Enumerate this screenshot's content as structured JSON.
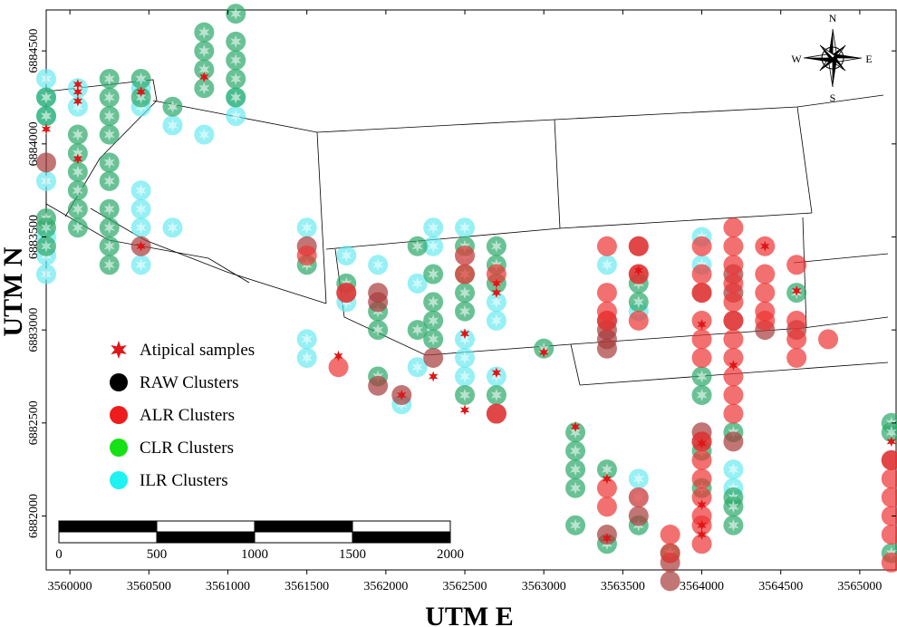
{
  "chart_data": {
    "type": "scatter",
    "title": "",
    "xlabel": "UTM E",
    "ylabel": "UTM N",
    "xlim": [
      3559850,
      3565230
    ],
    "ylim": [
      6881710,
      6884720
    ],
    "x_ticks": [
      3560000,
      3560500,
      3561000,
      3561500,
      3562000,
      3562500,
      3563000,
      3563500,
      3564000,
      3564500,
      3565000
    ],
    "x_tick_labels": [
      "3560000",
      "3560500",
      "3561000",
      "3561500",
      "3562000",
      "3562500",
      "3563000",
      "3563500",
      "3564000",
      "3564500",
      "3565000"
    ],
    "y_ticks": [
      6882000,
      6882500,
      6883000,
      6883500,
      6884000,
      6884500
    ],
    "y_tick_labels": [
      "6882000",
      "6882500",
      "6883000",
      "6883500",
      "6884000",
      "6884500"
    ],
    "grid": false,
    "legend": {
      "placement": "center-left",
      "entries": [
        {
          "label": "Atipical samples",
          "marker": "star",
          "color": "#e01616"
        },
        {
          "label": "RAW Clusters",
          "marker": "circle",
          "color": "#000000"
        },
        {
          "label": "ALR Clusters",
          "marker": "circle",
          "color": "#ee1c1c"
        },
        {
          "label": "CLR Clusters",
          "marker": "circle",
          "color": "#16e016"
        },
        {
          "label": "ILR Clusters",
          "marker": "circle",
          "color": "#1ef2f2"
        }
      ]
    },
    "compass": {
      "N": "N",
      "S": "S",
      "E": "E",
      "W": "W"
    },
    "scale_bar": {
      "labels": [
        "0",
        "500",
        "1000",
        "1500",
        "2000"
      ],
      "length": 2000
    },
    "series": [
      {
        "name": "ILR Clusters",
        "color": "#5ee8ee",
        "points": [
          [
            3559850,
            6884350
          ],
          [
            3559850,
            6884250
          ],
          [
            3559850,
            6884150
          ],
          [
            3559850,
            6883800
          ],
          [
            3559850,
            6883500
          ],
          [
            3559850,
            6883400
          ],
          [
            3559850,
            6883300
          ],
          [
            3560050,
            6884300
          ],
          [
            3560050,
            6884200
          ],
          [
            3560450,
            6884300
          ],
          [
            3560450,
            6884200
          ],
          [
            3560450,
            6883750
          ],
          [
            3560450,
            6883650
          ],
          [
            3560450,
            6883550
          ],
          [
            3560450,
            6883350
          ],
          [
            3560650,
            6884100
          ],
          [
            3560650,
            6883550
          ],
          [
            3560850,
            6884050
          ],
          [
            3561050,
            6884250
          ],
          [
            3561050,
            6884150
          ],
          [
            3561500,
            6883550
          ],
          [
            3561500,
            6882950
          ],
          [
            3561500,
            6882850
          ],
          [
            3561750,
            6883400
          ],
          [
            3561750,
            6883150
          ],
          [
            3561950,
            6883350
          ],
          [
            3562200,
            6883250
          ],
          [
            3562200,
            6882800
          ],
          [
            3562100,
            6882600
          ],
          [
            3562300,
            6883550
          ],
          [
            3562300,
            6883450
          ],
          [
            3562500,
            6883550
          ],
          [
            3562500,
            6883400
          ],
          [
            3562500,
            6882950
          ],
          [
            3562500,
            6882850
          ],
          [
            3562500,
            6882750
          ],
          [
            3562700,
            6883150
          ],
          [
            3562700,
            6883050
          ],
          [
            3562700,
            6882750
          ],
          [
            3563400,
            6883350
          ],
          [
            3563600,
            6883100
          ],
          [
            3563600,
            6882200
          ],
          [
            3563600,
            6882100
          ],
          [
            3564000,
            6883500
          ],
          [
            3564000,
            6883350
          ],
          [
            3564200,
            6882250
          ],
          [
            3564200,
            6882150
          ]
        ]
      },
      {
        "name": "CLR Clusters",
        "color": "#2aa868",
        "points": [
          [
            3559850,
            6884250
          ],
          [
            3559850,
            6884150
          ],
          [
            3559850,
            6883600
          ],
          [
            3559850,
            6883550
          ],
          [
            3559850,
            6883450
          ],
          [
            3560050,
            6884050
          ],
          [
            3560050,
            6883950
          ],
          [
            3560050,
            6883850
          ],
          [
            3560050,
            6883750
          ],
          [
            3560050,
            6883650
          ],
          [
            3560050,
            6883550
          ],
          [
            3560250,
            6884350
          ],
          [
            3560250,
            6884250
          ],
          [
            3560250,
            6884150
          ],
          [
            3560250,
            6884050
          ],
          [
            3560250,
            6883900
          ],
          [
            3560250,
            6883800
          ],
          [
            3560250,
            6883650
          ],
          [
            3560250,
            6883550
          ],
          [
            3560250,
            6883450
          ],
          [
            3560250,
            6883350
          ],
          [
            3560450,
            6884350
          ],
          [
            3560450,
            6884250
          ],
          [
            3560650,
            6884200
          ],
          [
            3560850,
            6884600
          ],
          [
            3560850,
            6884500
          ],
          [
            3560850,
            6884400
          ],
          [
            3560850,
            6884300
          ],
          [
            3561050,
            6884700
          ],
          [
            3561050,
            6884550
          ],
          [
            3561050,
            6884450
          ],
          [
            3561050,
            6884350
          ],
          [
            3561050,
            6884250
          ],
          [
            3561500,
            6883350
          ],
          [
            3561750,
            6883250
          ],
          [
            3561950,
            6883100
          ],
          [
            3561950,
            6883000
          ],
          [
            3562200,
            6883450
          ],
          [
            3562200,
            6883000
          ],
          [
            3562300,
            6883300
          ],
          [
            3562300,
            6883150
          ],
          [
            3562300,
            6883050
          ],
          [
            3562300,
            6882950
          ],
          [
            3562500,
            6883450
          ],
          [
            3562500,
            6883300
          ],
          [
            3562500,
            6883200
          ],
          [
            3562500,
            6883100
          ],
          [
            3562500,
            6882650
          ],
          [
            3562700,
            6883450
          ],
          [
            3562700,
            6883350
          ],
          [
            3562700,
            6883250
          ],
          [
            3562700,
            6882650
          ],
          [
            3561950,
            6882750
          ],
          [
            3563000,
            6882900
          ],
          [
            3563200,
            6882450
          ],
          [
            3563200,
            6882350
          ],
          [
            3563200,
            6882250
          ],
          [
            3563200,
            6882150
          ],
          [
            3563200,
            6881950
          ],
          [
            3563400,
            6882250
          ],
          [
            3563400,
            6881850
          ],
          [
            3563600,
            6883250
          ],
          [
            3563600,
            6883150
          ],
          [
            3563600,
            6881950
          ],
          [
            3563800,
            6881800
          ],
          [
            3564000,
            6882750
          ],
          [
            3564000,
            6882650
          ],
          [
            3564000,
            6882350
          ],
          [
            3564000,
            6882150
          ],
          [
            3564200,
            6882450
          ],
          [
            3564200,
            6882100
          ],
          [
            3564200,
            6882050
          ],
          [
            3564200,
            6881950
          ],
          [
            3564600,
            6883200
          ],
          [
            3565200,
            6882500
          ],
          [
            3565200,
            6882450
          ],
          [
            3565200,
            6881800
          ]
        ]
      },
      {
        "name": "RAW Clusters",
        "color": "#a83a3a",
        "points": [
          [
            3559850,
            6883900
          ],
          [
            3560450,
            6883450
          ],
          [
            3561500,
            6883450
          ],
          [
            3561750,
            6883200
          ],
          [
            3561950,
            6883200
          ],
          [
            3561950,
            6883150
          ],
          [
            3561950,
            6882700
          ],
          [
            3562100,
            6882650
          ],
          [
            3562300,
            6882850
          ],
          [
            3562700,
            6882550
          ],
          [
            3563400,
            6883050
          ],
          [
            3563400,
            6883000
          ],
          [
            3563400,
            6882950
          ],
          [
            3563400,
            6882900
          ],
          [
            3563600,
            6883450
          ],
          [
            3563600,
            6883300
          ],
          [
            3563400,
            6881900
          ],
          [
            3563600,
            6882000
          ],
          [
            3563800,
            6881750
          ],
          [
            3563800,
            6881650
          ],
          [
            3564000,
            6883200
          ],
          [
            3564000,
            6882450
          ],
          [
            3564000,
            6882400
          ],
          [
            3564200,
            6883300
          ],
          [
            3564200,
            6883200
          ],
          [
            3564200,
            6883050
          ],
          [
            3564200,
            6882400
          ],
          [
            3564400,
            6883000
          ],
          [
            3564600,
            6883000
          ],
          [
            3565200,
            6882300
          ]
        ]
      },
      {
        "name": "ALR Clusters",
        "color": "#ee3333",
        "points": [
          [
            3561500,
            6883400
          ],
          [
            3561750,
            6883200
          ],
          [
            3561700,
            6882800
          ],
          [
            3562500,
            6883400
          ],
          [
            3562500,
            6883300
          ],
          [
            3562700,
            6883300
          ],
          [
            3562700,
            6882550
          ],
          [
            3563400,
            6883450
          ],
          [
            3563400,
            6883200
          ],
          [
            3563400,
            6883100
          ],
          [
            3563400,
            6883050
          ],
          [
            3563600,
            6883450
          ],
          [
            3563600,
            6883300
          ],
          [
            3563600,
            6883050
          ],
          [
            3563400,
            6882150
          ],
          [
            3563400,
            6882050
          ],
          [
            3563600,
            6882100
          ],
          [
            3563800,
            6881900
          ],
          [
            3563800,
            6881800
          ],
          [
            3564000,
            6883450
          ],
          [
            3564000,
            6883300
          ],
          [
            3564000,
            6883200
          ],
          [
            3564000,
            6883050
          ],
          [
            3564000,
            6882950
          ],
          [
            3564000,
            6882850
          ],
          [
            3564000,
            6882400
          ],
          [
            3564000,
            6882300
          ],
          [
            3564000,
            6882200
          ],
          [
            3564000,
            6882100
          ],
          [
            3564000,
            6882000
          ],
          [
            3564000,
            6881950
          ],
          [
            3564000,
            6881850
          ],
          [
            3564200,
            6883550
          ],
          [
            3564200,
            6883450
          ],
          [
            3564200,
            6883350
          ],
          [
            3564200,
            6883250
          ],
          [
            3564200,
            6883150
          ],
          [
            3564200,
            6883050
          ],
          [
            3564200,
            6882950
          ],
          [
            3564200,
            6882850
          ],
          [
            3564200,
            6882750
          ],
          [
            3564200,
            6882650
          ],
          [
            3564200,
            6882550
          ],
          [
            3564400,
            6883450
          ],
          [
            3564400,
            6883300
          ],
          [
            3564400,
            6883200
          ],
          [
            3564400,
            6883100
          ],
          [
            3564400,
            6883050
          ],
          [
            3564600,
            6883350
          ],
          [
            3564600,
            6883050
          ],
          [
            3564600,
            6882950
          ],
          [
            3564600,
            6882850
          ],
          [
            3564800,
            6882950
          ],
          [
            3565200,
            6882300
          ],
          [
            3565200,
            6882200
          ],
          [
            3565200,
            6882100
          ],
          [
            3565200,
            6882000
          ],
          [
            3565200,
            6881900
          ],
          [
            3565200,
            6881750
          ]
        ]
      },
      {
        "name": "Atipical samples",
        "color": "#e01616",
        "marker": "star",
        "points": [
          [
            3559850,
            6884080
          ],
          [
            3560050,
            6884320
          ],
          [
            3560050,
            6884280
          ],
          [
            3560050,
            6884230
          ],
          [
            3560050,
            6883920
          ],
          [
            3560450,
            6884280
          ],
          [
            3560850,
            6884360
          ],
          [
            3560450,
            6883450
          ],
          [
            3561700,
            6882860
          ],
          [
            3562300,
            6882750
          ],
          [
            3562100,
            6882650
          ],
          [
            3562500,
            6882980
          ],
          [
            3562500,
            6882570
          ],
          [
            3562700,
            6883250
          ],
          [
            3562700,
            6883200
          ],
          [
            3562700,
            6882770
          ],
          [
            3563000,
            6882880
          ],
          [
            3563200,
            6882480
          ],
          [
            3563400,
            6882200
          ],
          [
            3563400,
            6881880
          ],
          [
            3563600,
            6883320
          ],
          [
            3564000,
            6883030
          ],
          [
            3564000,
            6882390
          ],
          [
            3564000,
            6882060
          ],
          [
            3564000,
            6881950
          ],
          [
            3564000,
            6881900
          ],
          [
            3564200,
            6882810
          ],
          [
            3564400,
            6883450
          ],
          [
            3564600,
            6883210
          ],
          [
            3565200,
            6882400
          ]
        ]
      }
    ]
  }
}
